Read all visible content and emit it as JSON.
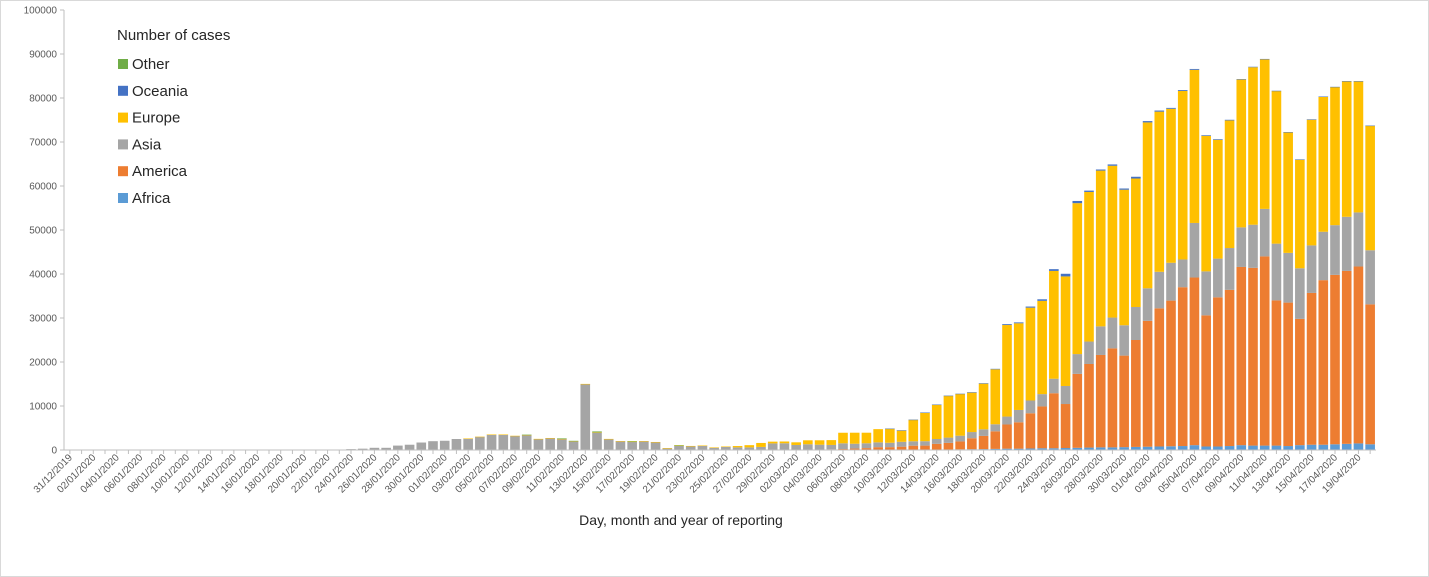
{
  "chart_data": {
    "type": "bar",
    "stacked": true,
    "title": "",
    "xlabel": "Day, month and year of reporting",
    "ylabel": "",
    "ylim": [
      0,
      100000
    ],
    "yticks": [
      "0",
      "10000",
      "20000",
      "30000",
      "40000",
      "50000",
      "60000",
      "70000",
      "80000",
      "90000",
      "100000"
    ],
    "grid": false,
    "legend_title": "Number of cases",
    "legend_position": "top-left",
    "legend_order": [
      "Other",
      "Oceania",
      "Europe",
      "Asia",
      "America",
      "Africa"
    ],
    "series_colors": {
      "Africa": "#5b9bd5",
      "America": "#ed7d31",
      "Asia": "#a5a5a5",
      "Europe": "#ffc000",
      "Oceania": "#4472c4",
      "Other": "#70ad47"
    },
    "categories": [
      "31/12/2019",
      "01/01/2020",
      "02/01/2020",
      "03/01/2020",
      "04/01/2020",
      "05/01/2020",
      "06/01/2020",
      "07/01/2020",
      "08/01/2020",
      "09/01/2020",
      "10/01/2020",
      "11/01/2020",
      "12/01/2020",
      "13/01/2020",
      "14/01/2020",
      "15/01/2020",
      "16/01/2020",
      "17/01/2020",
      "18/01/2020",
      "19/01/2020",
      "20/01/2020",
      "21/01/2020",
      "22/01/2020",
      "23/01/2020",
      "24/01/2020",
      "25/01/2020",
      "26/01/2020",
      "27/01/2020",
      "28/01/2020",
      "29/01/2020",
      "30/01/2020",
      "31/01/2020",
      "01/02/2020",
      "02/02/2020",
      "03/02/2020",
      "04/02/2020",
      "05/02/2020",
      "06/02/2020",
      "07/02/2020",
      "08/02/2020",
      "09/02/2020",
      "10/02/2020",
      "11/02/2020",
      "12/02/2020",
      "13/02/2020",
      "14/02/2020",
      "15/02/2020",
      "16/02/2020",
      "17/02/2020",
      "18/02/2020",
      "19/02/2020",
      "20/02/2020",
      "21/02/2020",
      "22/02/2020",
      "23/02/2020",
      "24/02/2020",
      "25/02/2020",
      "26/02/2020",
      "27/02/2020",
      "28/02/2020",
      "29/02/2020",
      "01/03/2020",
      "02/03/2020",
      "03/03/2020",
      "04/03/2020",
      "05/03/2020",
      "06/03/2020",
      "07/03/2020",
      "08/03/2020",
      "09/03/2020",
      "10/03/2020",
      "11/03/2020",
      "12/03/2020",
      "13/03/2020",
      "14/03/2020",
      "15/03/2020",
      "16/03/2020",
      "17/03/2020",
      "18/03/2020",
      "19/03/2020",
      "20/03/2020",
      "21/03/2020",
      "22/03/2020",
      "23/03/2020",
      "24/03/2020",
      "25/03/2020",
      "26/03/2020",
      "27/03/2020",
      "28/03/2020",
      "29/03/2020",
      "30/03/2020",
      "31/03/2020",
      "01/04/2020",
      "02/04/2020",
      "03/04/2020",
      "04/04/2020",
      "05/04/2020",
      "06/04/2020",
      "07/04/2020",
      "08/04/2020",
      "09/04/2020",
      "10/04/2020",
      "11/04/2020",
      "12/04/2020",
      "13/04/2020",
      "14/04/2020",
      "15/04/2020",
      "16/04/2020",
      "17/04/2020",
      "18/04/2020",
      "19/04/2020",
      "20/04/2020"
    ],
    "series": [
      {
        "name": "Africa",
        "values": [
          0,
          0,
          0,
          0,
          0,
          0,
          0,
          0,
          0,
          0,
          0,
          0,
          0,
          0,
          0,
          0,
          0,
          0,
          0,
          0,
          0,
          0,
          0,
          0,
          0,
          0,
          0,
          0,
          0,
          0,
          0,
          0,
          0,
          0,
          0,
          0,
          0,
          0,
          0,
          0,
          0,
          0,
          0,
          0,
          0,
          0,
          0,
          0,
          0,
          0,
          0,
          0,
          0,
          0,
          0,
          0,
          0,
          0,
          0,
          0,
          0,
          3,
          5,
          5,
          10,
          20,
          20,
          30,
          30,
          40,
          50,
          60,
          80,
          100,
          100,
          120,
          150,
          180,
          200,
          250,
          300,
          300,
          350,
          400,
          400,
          450,
          500,
          550,
          600,
          600,
          650,
          700,
          750,
          800,
          850,
          900,
          1100,
          800,
          800,
          900,
          1100,
          1000,
          1000,
          1000,
          900,
          1100,
          1200,
          1200,
          1300,
          1400,
          1500,
          1300
        ]
      },
      {
        "name": "America",
        "values": [
          0,
          0,
          0,
          0,
          0,
          0,
          0,
          0,
          0,
          0,
          0,
          0,
          0,
          0,
          0,
          0,
          0,
          0,
          0,
          0,
          0,
          0,
          0,
          0,
          0,
          0,
          0,
          0,
          0,
          0,
          0,
          0,
          0,
          0,
          0,
          0,
          0,
          0,
          0,
          0,
          0,
          0,
          0,
          0,
          0,
          0,
          0,
          0,
          0,
          0,
          0,
          0,
          0,
          0,
          0,
          0,
          0,
          0,
          0,
          0,
          0,
          30,
          40,
          100,
          100,
          130,
          200,
          300,
          400,
          600,
          600,
          700,
          900,
          900,
          1300,
          1500,
          1800,
          2500,
          3000,
          4000,
          5500,
          6000,
          8000,
          9500,
          12500,
          10000,
          16800,
          19000,
          21000,
          22500,
          20800,
          24300,
          28600,
          31400,
          33100,
          36100,
          38100,
          29800,
          33900,
          35500,
          40500,
          40400,
          43000,
          33000,
          32600,
          28700,
          34500,
          37400,
          38500,
          39300,
          40200,
          31800
        ]
      },
      {
        "name": "Asia",
        "values": [
          0,
          0,
          0,
          0,
          0,
          0,
          0,
          0,
          0,
          0,
          0,
          0,
          0,
          0,
          0,
          0,
          0,
          0,
          0,
          0,
          0,
          0,
          0,
          0,
          200,
          300,
          500,
          500,
          1000,
          1200,
          1700,
          2000,
          2100,
          2500,
          2600,
          3000,
          3500,
          3500,
          3200,
          3400,
          2500,
          2700,
          2500,
          2000,
          15000,
          4000,
          2500,
          2000,
          1900,
          2000,
          1800,
          400,
          1000,
          900,
          1000,
          500,
          700,
          600,
          600,
          700,
          1500,
          1500,
          1100,
          1200,
          1100,
          1000,
          1300,
          1100,
          1100,
          1100,
          1000,
          1100,
          1000,
          1000,
          1100,
          1200,
          1300,
          1400,
          1500,
          1600,
          1800,
          2800,
          2900,
          2800,
          3300,
          4100,
          4500,
          5100,
          6500,
          7000,
          6900,
          7500,
          7400,
          8300,
          8600,
          6300,
          12400,
          10000,
          8800,
          9500,
          9000,
          9800,
          10800,
          12900,
          11300,
          11500,
          10800,
          11000,
          11300,
          12300,
          12300,
          12300
        ]
      },
      {
        "name": "Europe",
        "values": [
          0,
          0,
          0,
          0,
          0,
          0,
          0,
          0,
          0,
          0,
          0,
          0,
          0,
          0,
          0,
          0,
          0,
          0,
          0,
          0,
          0,
          0,
          0,
          0,
          0,
          0,
          0,
          0,
          0,
          0,
          0,
          0,
          0,
          0,
          20,
          20,
          30,
          30,
          30,
          30,
          30,
          30,
          30,
          20,
          20,
          20,
          20,
          20,
          20,
          20,
          20,
          20,
          20,
          20,
          20,
          100,
          100,
          300,
          500,
          900,
          400,
          400,
          600,
          900,
          1000,
          1100,
          2400,
          2500,
          2400,
          3000,
          3200,
          2600,
          4900,
          6500,
          7800,
          9500,
          9500,
          9000,
          10400,
          12500,
          20800,
          19700,
          21100,
          21200,
          24500,
          24900,
          34300,
          34000,
          35400,
          34500,
          30800,
          29200,
          37700,
          36400,
          35000,
          38300,
          34800,
          30800,
          27000,
          29000,
          33600,
          35800,
          34000,
          34700,
          27400,
          24700,
          28600,
          30700,
          31400,
          30800,
          29800,
          28300
        ]
      },
      {
        "name": "Oceania",
        "values": [
          0,
          0,
          0,
          0,
          0,
          0,
          0,
          0,
          0,
          0,
          0,
          0,
          0,
          0,
          0,
          0,
          0,
          0,
          0,
          0,
          0,
          0,
          0,
          0,
          0,
          0,
          0,
          0,
          0,
          0,
          0,
          0,
          0,
          0,
          0,
          0,
          0,
          0,
          0,
          0,
          0,
          0,
          0,
          0,
          0,
          0,
          0,
          0,
          0,
          0,
          0,
          0,
          0,
          0,
          0,
          0,
          0,
          0,
          0,
          0,
          0,
          0,
          0,
          0,
          0,
          0,
          0,
          0,
          0,
          0,
          10,
          10,
          10,
          20,
          30,
          30,
          40,
          50,
          80,
          100,
          200,
          200,
          250,
          350,
          400,
          600,
          500,
          300,
          250,
          300,
          280,
          400,
          300,
          250,
          200,
          200,
          200,
          150,
          150,
          150,
          100,
          100,
          80,
          50,
          50,
          50,
          50,
          40,
          40,
          40,
          30,
          30
        ]
      },
      {
        "name": "Other",
        "values": [
          0,
          0,
          0,
          0,
          0,
          0,
          0,
          0,
          0,
          0,
          0,
          0,
          0,
          0,
          0,
          0,
          0,
          0,
          0,
          0,
          0,
          0,
          0,
          0,
          0,
          0,
          0,
          0,
          0,
          0,
          0,
          0,
          0,
          0,
          0,
          0,
          0,
          0,
          0,
          61,
          0,
          0,
          130,
          70,
          0,
          200,
          0,
          0,
          100,
          0,
          0,
          0,
          80,
          0,
          0,
          0,
          0,
          0,
          0,
          0,
          0,
          0,
          0,
          0,
          0,
          0,
          0,
          0,
          0,
          0,
          0,
          0,
          0,
          0,
          0,
          0,
          0,
          0,
          0,
          0,
          0,
          0,
          0,
          0,
          0,
          0,
          0,
          0,
          0,
          0,
          0,
          0,
          0,
          0,
          0,
          0,
          0,
          0,
          0,
          0,
          0,
          0,
          0,
          0,
          0,
          0,
          0,
          0,
          0,
          0,
          0,
          0
        ]
      }
    ]
  }
}
